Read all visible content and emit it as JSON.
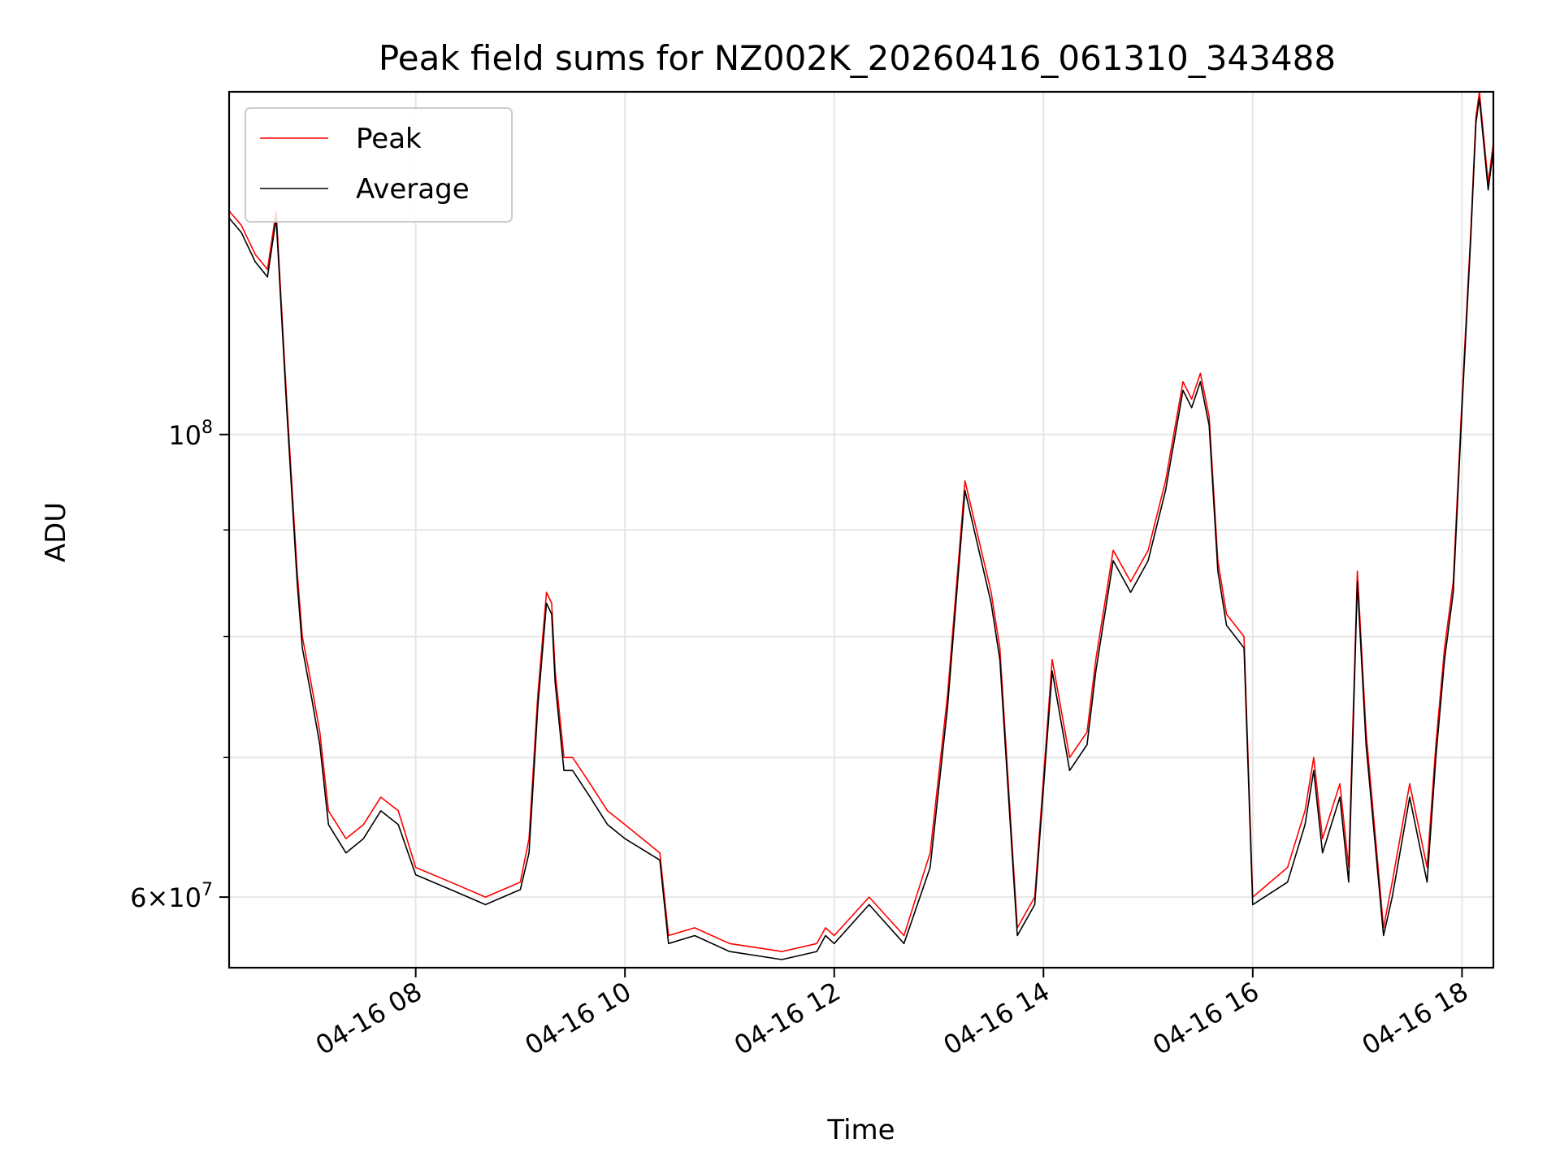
{
  "chart_data": {
    "type": "line",
    "title": "Peak field sums for NZ002K_20260416_061310_343488",
    "xlabel": "Time",
    "ylabel": "ADU",
    "yscale": "log",
    "ylim": [
      55500000,
      146000000
    ],
    "xlim": [
      "2026-04-16 06:13",
      "2026-04-16 18:18"
    ],
    "x_ticks": [
      "04-16 08",
      "04-16 10",
      "04-16 12",
      "04-16 14",
      "04-16 16",
      "04-16 18"
    ],
    "y_ticks": [
      {
        "value": 60000000,
        "base": "6×10",
        "exp": "7"
      },
      {
        "value": 100000000,
        "base": "10",
        "exp": "8"
      }
    ],
    "grid": true,
    "legend_position": "top-left",
    "legend": [
      "Peak",
      "Average"
    ],
    "colors": {
      "Peak": "#ff0000",
      "Average": "#000000"
    },
    "series": [
      {
        "name": "Peak",
        "x": [
          "2026-04-16 06:13",
          "2026-04-16 06:20",
          "2026-04-16 06:28",
          "2026-04-16 06:35",
          "2026-04-16 06:40",
          "2026-04-16 06:46",
          "2026-04-16 06:52",
          "2026-04-16 06:55",
          "2026-04-16 07:00",
          "2026-04-16 07:05",
          "2026-04-16 07:10",
          "2026-04-16 07:20",
          "2026-04-16 07:30",
          "2026-04-16 07:40",
          "2026-04-16 07:50",
          "2026-04-16 08:00",
          "2026-04-16 08:20",
          "2026-04-16 08:40",
          "2026-04-16 09:00",
          "2026-04-16 09:05",
          "2026-04-16 09:10",
          "2026-04-16 09:15",
          "2026-04-16 09:18",
          "2026-04-16 09:20",
          "2026-04-16 09:25",
          "2026-04-16 09:30",
          "2026-04-16 09:40",
          "2026-04-16 09:50",
          "2026-04-16 10:00",
          "2026-04-16 10:20",
          "2026-04-16 10:25",
          "2026-04-16 10:40",
          "2026-04-16 11:00",
          "2026-04-16 11:30",
          "2026-04-16 11:50",
          "2026-04-16 11:55",
          "2026-04-16 12:00",
          "2026-04-16 12:20",
          "2026-04-16 12:40",
          "2026-04-16 12:55",
          "2026-04-16 13:05",
          "2026-04-16 13:15",
          "2026-04-16 13:30",
          "2026-04-16 13:35",
          "2026-04-16 13:45",
          "2026-04-16 13:55",
          "2026-04-16 14:05",
          "2026-04-16 14:15",
          "2026-04-16 14:25",
          "2026-04-16 14:30",
          "2026-04-16 14:40",
          "2026-04-16 14:50",
          "2026-04-16 15:00",
          "2026-04-16 15:10",
          "2026-04-16 15:20",
          "2026-04-16 15:25",
          "2026-04-16 15:30",
          "2026-04-16 15:35",
          "2026-04-16 15:40",
          "2026-04-16 15:45",
          "2026-04-16 15:55",
          "2026-04-16 16:00",
          "2026-04-16 16:20",
          "2026-04-16 16:30",
          "2026-04-16 16:35",
          "2026-04-16 16:40",
          "2026-04-16 16:50",
          "2026-04-16 16:55",
          "2026-04-16 17:00",
          "2026-04-16 17:05",
          "2026-04-16 17:15",
          "2026-04-16 17:20",
          "2026-04-16 17:30",
          "2026-04-16 17:40",
          "2026-04-16 17:45",
          "2026-04-16 17:50",
          "2026-04-16 17:55",
          "2026-04-16 18:00",
          "2026-04-16 18:05",
          "2026-04-16 18:08",
          "2026-04-16 18:10",
          "2026-04-16 18:15",
          "2026-04-16 18:18"
        ],
        "y": [
          128000000,
          126000000,
          122000000,
          120000000,
          128000000,
          104000000,
          86000000,
          80000000,
          76000000,
          72000000,
          66000000,
          64000000,
          65000000,
          67000000,
          66000000,
          62000000,
          61000000,
          60000000,
          61000000,
          64000000,
          75000000,
          84000000,
          83000000,
          77000000,
          70000000,
          70000000,
          68000000,
          66000000,
          65000000,
          63000000,
          57500000,
          58000000,
          57000000,
          56500000,
          57000000,
          58000000,
          57500000,
          60000000,
          57500000,
          63000000,
          75000000,
          95000000,
          84000000,
          79000000,
          58000000,
          60000000,
          78000000,
          70000000,
          72000000,
          78000000,
          88000000,
          85000000,
          88000000,
          95000000,
          106000000,
          104000000,
          107000000,
          102000000,
          87000000,
          82000000,
          80000000,
          60000000,
          62000000,
          66000000,
          70000000,
          64000000,
          68000000,
          62000000,
          86000000,
          72000000,
          58000000,
          61000000,
          68000000,
          62000000,
          71000000,
          79000000,
          85000000,
          104000000,
          125000000,
          142000000,
          146000000,
          132000000,
          138000000
        ]
      },
      {
        "name": "Average",
        "x": [
          "2026-04-16 06:13",
          "2026-04-16 06:20",
          "2026-04-16 06:28",
          "2026-04-16 06:35",
          "2026-04-16 06:40",
          "2026-04-16 06:46",
          "2026-04-16 06:52",
          "2026-04-16 06:55",
          "2026-04-16 07:00",
          "2026-04-16 07:05",
          "2026-04-16 07:10",
          "2026-04-16 07:20",
          "2026-04-16 07:30",
          "2026-04-16 07:40",
          "2026-04-16 07:50",
          "2026-04-16 08:00",
          "2026-04-16 08:20",
          "2026-04-16 08:40",
          "2026-04-16 09:00",
          "2026-04-16 09:05",
          "2026-04-16 09:10",
          "2026-04-16 09:15",
          "2026-04-16 09:18",
          "2026-04-16 09:20",
          "2026-04-16 09:25",
          "2026-04-16 09:30",
          "2026-04-16 09:40",
          "2026-04-16 09:50",
          "2026-04-16 10:00",
          "2026-04-16 10:20",
          "2026-04-16 10:25",
          "2026-04-16 10:40",
          "2026-04-16 11:00",
          "2026-04-16 11:30",
          "2026-04-16 11:50",
          "2026-04-16 11:55",
          "2026-04-16 12:00",
          "2026-04-16 12:20",
          "2026-04-16 12:40",
          "2026-04-16 12:55",
          "2026-04-16 13:05",
          "2026-04-16 13:15",
          "2026-04-16 13:30",
          "2026-04-16 13:35",
          "2026-04-16 13:45",
          "2026-04-16 13:55",
          "2026-04-16 14:05",
          "2026-04-16 14:15",
          "2026-04-16 14:25",
          "2026-04-16 14:30",
          "2026-04-16 14:40",
          "2026-04-16 14:50",
          "2026-04-16 15:00",
          "2026-04-16 15:10",
          "2026-04-16 15:20",
          "2026-04-16 15:25",
          "2026-04-16 15:30",
          "2026-04-16 15:35",
          "2026-04-16 15:40",
          "2026-04-16 15:45",
          "2026-04-16 15:55",
          "2026-04-16 16:00",
          "2026-04-16 16:20",
          "2026-04-16 16:30",
          "2026-04-16 16:35",
          "2026-04-16 16:40",
          "2026-04-16 16:50",
          "2026-04-16 16:55",
          "2026-04-16 17:00",
          "2026-04-16 17:05",
          "2026-04-16 17:15",
          "2026-04-16 17:20",
          "2026-04-16 17:30",
          "2026-04-16 17:40",
          "2026-04-16 17:45",
          "2026-04-16 17:50",
          "2026-04-16 17:55",
          "2026-04-16 18:00",
          "2026-04-16 18:05",
          "2026-04-16 18:08",
          "2026-04-16 18:10",
          "2026-04-16 18:15",
          "2026-04-16 18:18"
        ],
        "y": [
          127000000,
          125000000,
          121000000,
          119000000,
          127000000,
          103000000,
          85000000,
          79000000,
          75000000,
          71000000,
          65000000,
          63000000,
          64000000,
          66000000,
          65000000,
          61500000,
          60500000,
          59500000,
          60500000,
          63000000,
          74000000,
          83000000,
          82000000,
          76000000,
          69000000,
          69000000,
          67000000,
          65000000,
          64000000,
          62500000,
          57000000,
          57500000,
          56500000,
          56000000,
          56500000,
          57500000,
          57000000,
          59500000,
          57000000,
          62000000,
          74000000,
          94000000,
          83000000,
          78000000,
          57500000,
          59500000,
          77000000,
          69000000,
          71000000,
          77000000,
          87000000,
          84000000,
          87000000,
          94000000,
          105000000,
          103000000,
          106000000,
          101000000,
          86000000,
          81000000,
          79000000,
          59500000,
          61000000,
          65000000,
          69000000,
          63000000,
          67000000,
          61000000,
          85000000,
          71000000,
          57500000,
          60000000,
          67000000,
          61000000,
          70000000,
          78000000,
          84000000,
          103000000,
          124000000,
          141000000,
          145000000,
          131000000,
          137000000
        ]
      }
    ]
  }
}
